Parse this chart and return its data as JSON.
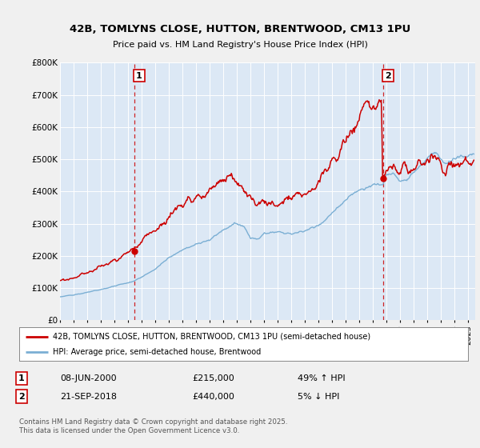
{
  "title1": "42B, TOMLYNS CLOSE, HUTTON, BRENTWOOD, CM13 1PU",
  "title2": "Price paid vs. HM Land Registry's House Price Index (HPI)",
  "ylim": [
    0,
    800000
  ],
  "yticks": [
    0,
    100000,
    200000,
    300000,
    400000,
    500000,
    600000,
    700000,
    800000
  ],
  "ytick_labels": [
    "£0",
    "£100K",
    "£200K",
    "£300K",
    "£400K",
    "£500K",
    "£600K",
    "£700K",
    "£800K"
  ],
  "xlim_start": 1995.0,
  "xlim_end": 2025.5,
  "sale1_year": 2000.44,
  "sale1_price": 215000,
  "sale1_label": "1",
  "sale1_date": "08-JUN-2000",
  "sale1_pct": "49% ↑ HPI",
  "sale2_year": 2018.72,
  "sale2_price": 440000,
  "sale2_label": "2",
  "sale2_date": "21-SEP-2018",
  "sale2_pct": "5% ↓ HPI",
  "red_color": "#cc0000",
  "blue_color": "#7bafd4",
  "bg_color": "#f0f0f0",
  "plot_bg": "#dce8f5",
  "grid_color": "#ffffff",
  "legend_line1": "42B, TOMLYNS CLOSE, HUTTON, BRENTWOOD, CM13 1PU (semi-detached house)",
  "legend_line2": "HPI: Average price, semi-detached house, Brentwood",
  "footer": "Contains HM Land Registry data © Crown copyright and database right 2025.\nThis data is licensed under the Open Government Licence v3.0."
}
